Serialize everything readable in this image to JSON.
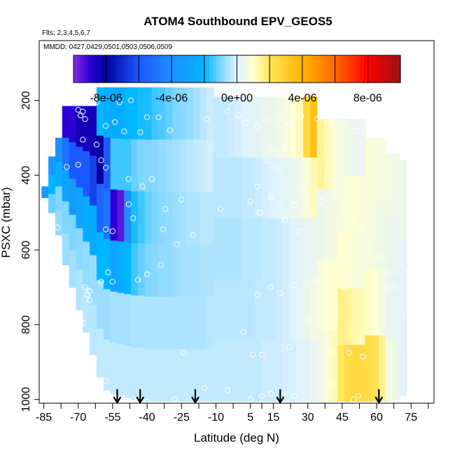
{
  "chart_data": {
    "type": "heatmap",
    "title": "ATOM4 Southbound EPV_GEOS5",
    "flights_label": "Flts: 2,3,4,5,6,7",
    "mmdd_label": "MMDD: 0427,0429,0501,0503,0506,0509",
    "xlabel": "Latitude (deg N)",
    "ylabel": "PSXC (mbar)",
    "xlim": [
      -87,
      85
    ],
    "ylim": [
      1010,
      40
    ],
    "x_ticks": [
      -85,
      -70,
      -55,
      -40,
      -25,
      -10,
      5,
      15,
      30,
      45,
      60,
      75
    ],
    "x_tick_labels": [
      "-85",
      "-70",
      "-55",
      "-40",
      "-25",
      "-10",
      "5",
      "15",
      "30",
      "45",
      "60",
      "75"
    ],
    "x_minor_ticks": [
      -77.5,
      -62.5,
      -47.5,
      -32.5,
      -17.5,
      -2.5,
      10,
      22.5,
      37.5,
      52.5,
      67.5,
      82.5
    ],
    "y_ticks": [
      200,
      400,
      600,
      800,
      1000
    ],
    "y_tick_labels": [
      "200",
      "400",
      "600",
      "800",
      "1000"
    ],
    "colorbar": {
      "min": -1e-05,
      "max": 1e-05,
      "ticks": [
        -8e-06,
        -4e-06,
        0,
        4e-06,
        8e-06
      ],
      "tick_labels": [
        "-8e-06",
        "-4e-06",
        "0e+00",
        "4e-06",
        "8e-06"
      ],
      "stops": [
        {
          "v": -1e-05,
          "c": "#8a2be2"
        },
        {
          "v": -9e-06,
          "c": "#2a00d5"
        },
        {
          "v": -8e-06,
          "c": "#00009e"
        },
        {
          "v": -6e-06,
          "c": "#1c58ff"
        },
        {
          "v": -4e-06,
          "c": "#1e8fff"
        },
        {
          "v": -2e-06,
          "c": "#00b6ff"
        },
        {
          "v": -1e-06,
          "c": "#7fd6ff"
        },
        {
          "v": 0,
          "c": "#dff2ff"
        },
        {
          "v": 1e-06,
          "c": "#ffffd0"
        },
        {
          "v": 2e-06,
          "c": "#ffe65a"
        },
        {
          "v": 4e-06,
          "c": "#ffb400"
        },
        {
          "v": 6e-06,
          "c": "#ff6a00"
        },
        {
          "v": 8e-06,
          "c": "#ff0000"
        },
        {
          "v": 1e-05,
          "c": "#9a1414"
        }
      ]
    },
    "columns": [
      {
        "lat": -84.5,
        "p_top": 430,
        "p_bot": 460,
        "v": [
          -3.5e-06
        ]
      },
      {
        "lat": -81.5,
        "p_top": 350,
        "p_bot": 500,
        "v": [
          -3.5e-06,
          -2e-06,
          -1.2e-06
        ]
      },
      {
        "lat": -78.5,
        "p_top": 300,
        "p_bot": 560,
        "v": [
          -4e-06,
          -2.5e-06,
          -1e-06,
          -8e-07
        ]
      },
      {
        "lat": -75.5,
        "p_top": 215,
        "p_bot": 640,
        "v": [
          -9e-06,
          -5e-06,
          -3e-06,
          -1e-06,
          -7e-07
        ]
      },
      {
        "lat": -72.5,
        "p_top": 215,
        "p_bot": 700,
        "v": [
          -9e-06,
          -6e-06,
          -3.5e-06,
          -1e-06,
          -6e-07
        ]
      },
      {
        "lat": -69.5,
        "p_top": 215,
        "p_bot": 760,
        "v": [
          -8.5e-06,
          -6e-06,
          -3e-06,
          -9e-07,
          -5e-07
        ]
      },
      {
        "lat": -66.5,
        "p_top": 215,
        "p_bot": 820,
        "v": [
          -8.5e-06,
          -6e-06,
          -2.5e-06,
          -8e-07,
          -4e-07
        ]
      },
      {
        "lat": -63.5,
        "p_top": 215,
        "p_bot": 880,
        "v": [
          -8.5e-06,
          -6.5e-06,
          -2.5e-06,
          -7e-07,
          -4e-07
        ]
      },
      {
        "lat": -60.5,
        "p_top": 165,
        "p_bot": 940,
        "v": [
          -2e-06,
          -8e-06,
          -5.5e-06,
          -2e-06,
          -7e-07,
          -3e-07
        ]
      },
      {
        "lat": -57.5,
        "p_top": 165,
        "p_bot": 975,
        "v": [
          -2.5e-06,
          -6e-06,
          -5e-06,
          -2e-06,
          -7e-07,
          -3e-07
        ]
      },
      {
        "lat": -54.5,
        "p_top": 165,
        "p_bot": 985,
        "v": [
          -2.5e-06,
          -1.5e-06,
          -9e-06,
          -3e-06,
          -6e-07,
          -3e-07
        ]
      },
      {
        "lat": -51.5,
        "p_top": 165,
        "p_bot": 990,
        "v": [
          -2.5e-06,
          -1.5e-06,
          -9.5e-06,
          -2.5e-06,
          -6e-07,
          -3e-07
        ]
      },
      {
        "lat": -48.5,
        "p_top": 165,
        "p_bot": 995,
        "v": [
          -2e-06,
          -1.5e-06,
          -4e-06,
          -2e-06,
          -6e-07,
          -3e-07
        ]
      },
      {
        "lat": -45.5,
        "p_top": 165,
        "p_bot": 1000,
        "v": [
          -2e-06,
          -1.2e-06,
          -1.8e-06,
          -1.5e-06,
          -5e-07,
          -3e-07
        ]
      },
      {
        "lat": -42.5,
        "p_top": 165,
        "p_bot": 1000,
        "v": [
          -1.8e-06,
          -1e-06,
          -1.5e-06,
          -1.2e-06,
          -5e-07,
          -3e-07
        ]
      },
      {
        "lat": -39.5,
        "p_top": 165,
        "p_bot": 1005,
        "v": [
          -1.8e-06,
          -1e-06,
          -1.2e-06,
          -1e-06,
          -5e-07,
          -3e-07
        ]
      },
      {
        "lat": -36.5,
        "p_top": 165,
        "p_bot": 1005,
        "v": [
          -1.5e-06,
          -9e-07,
          -1e-06,
          -9e-07,
          -5e-07,
          -3e-07
        ]
      },
      {
        "lat": -33.5,
        "p_top": 165,
        "p_bot": 1005,
        "v": [
          -1.4e-06,
          -8e-07,
          -9e-07,
          -8e-07,
          -5e-07,
          -3e-07
        ]
      },
      {
        "lat": -30.5,
        "p_top": 165,
        "p_bot": 1005,
        "v": [
          -1.2e-06,
          -7e-07,
          -8e-07,
          -8e-07,
          -5e-07,
          -3e-07
        ]
      },
      {
        "lat": -27.5,
        "p_top": 165,
        "p_bot": 1005,
        "v": [
          -1e-06,
          -6e-07,
          -7e-07,
          -7e-07,
          -5e-07,
          -3e-07
        ]
      },
      {
        "lat": -24.5,
        "p_top": 165,
        "p_bot": 1005,
        "v": [
          -9e-07,
          -5e-07,
          -6e-07,
          -6e-07,
          -5e-07,
          -3e-07
        ]
      },
      {
        "lat": -21.5,
        "p_top": 165,
        "p_bot": 1005,
        "v": [
          -8e-07,
          -4e-07,
          -5e-07,
          -6e-07,
          -5e-07,
          -3e-07
        ]
      },
      {
        "lat": -18.5,
        "p_top": 165,
        "p_bot": 1005,
        "v": [
          -6e-07,
          -3e-07,
          -5e-07,
          -6e-07,
          -5e-07,
          -3e-07
        ]
      },
      {
        "lat": -15.5,
        "p_top": 165,
        "p_bot": 1005,
        "v": [
          -4e-07,
          -2e-07,
          -4e-07,
          -5e-07,
          -5e-07,
          -3e-07
        ]
      },
      {
        "lat": -12.5,
        "p_top": 165,
        "p_bot": 1005,
        "v": [
          -2e-07,
          -1e-07,
          -4e-07,
          -5e-07,
          -4e-07,
          -3e-07
        ]
      },
      {
        "lat": -9.5,
        "p_top": 190,
        "p_bot": 1005,
        "v": [
          -3e-07,
          -4e-07,
          -5e-07,
          -4e-07,
          -3e-07
        ]
      },
      {
        "lat": -6.5,
        "p_top": 190,
        "p_bot": 1005,
        "v": [
          -3e-07,
          -4e-07,
          -5e-07,
          -4e-07,
          -3e-07
        ]
      },
      {
        "lat": -3.5,
        "p_top": 190,
        "p_bot": 1005,
        "v": [
          -2e-07,
          -4e-07,
          -5e-07,
          -4e-07,
          -3e-07
        ]
      },
      {
        "lat": -0.5,
        "p_top": 190,
        "p_bot": 1005,
        "v": [
          -1e-07,
          -4e-07,
          -5e-07,
          -4e-07,
          -3e-07
        ]
      },
      {
        "lat": 2.5,
        "p_top": 190,
        "p_bot": 1005,
        "v": [
          0,
          -3e-07,
          -4e-07,
          -4e-07,
          -3e-07
        ]
      },
      {
        "lat": 5.5,
        "p_top": 190,
        "p_bot": 1005,
        "v": [
          1e-07,
          -3e-07,
          -4e-07,
          -4e-07,
          -3e-07
        ]
      },
      {
        "lat": 8.5,
        "p_top": 190,
        "p_bot": 1005,
        "v": [
          2e-07,
          -2e-07,
          -4e-07,
          -3e-07,
          -3e-07
        ]
      },
      {
        "lat": 11.5,
        "p_top": 190,
        "p_bot": 1005,
        "v": [
          3e-07,
          -1e-07,
          -3e-07,
          -3e-07,
          -2e-07
        ]
      },
      {
        "lat": 14.5,
        "p_top": 190,
        "p_bot": 1005,
        "v": [
          4e-07,
          0,
          -3e-07,
          -3e-07,
          -2e-07
        ]
      },
      {
        "lat": 17.5,
        "p_top": 190,
        "p_bot": 1005,
        "v": [
          5e-07,
          1e-07,
          -2e-07,
          -2e-07,
          -2e-07
        ]
      },
      {
        "lat": 20.5,
        "p_top": 190,
        "p_bot": 1005,
        "v": [
          7e-07,
          2e-07,
          -1e-07,
          -1e-07,
          -1e-07
        ]
      },
      {
        "lat": 23.5,
        "p_top": 190,
        "p_bot": 1005,
        "v": [
          9e-07,
          3e-07,
          0,
          0,
          -1e-07
        ]
      },
      {
        "lat": 26.5,
        "p_top": 190,
        "p_bot": 1005,
        "v": [
          1.2e-06,
          5e-07,
          1e-07,
          2e-07,
          0
        ]
      },
      {
        "lat": 29.5,
        "p_top": 190,
        "p_bot": 1005,
        "v": [
          2.5e-06,
          8e-07,
          2e-07,
          4e-07,
          1e-07
        ]
      },
      {
        "lat": 32.5,
        "p_top": 190,
        "p_bot": 1005,
        "v": [
          3.5e-06,
          1.2e-06,
          3e-07,
          6e-07,
          3e-07
        ]
      },
      {
        "lat": 35.5,
        "p_top": 250,
        "p_bot": 1005,
        "v": [
          1.5e-06,
          4e-07,
          8e-07,
          5e-07
        ]
      },
      {
        "lat": 38.5,
        "p_top": 250,
        "p_bot": 1005,
        "v": [
          1.2e-06,
          5e-07,
          9e-07,
          8e-07
        ]
      },
      {
        "lat": 41.5,
        "p_top": 250,
        "p_bot": 1005,
        "v": [
          8e-07,
          6e-07,
          1e-06,
          1.2e-06
        ]
      },
      {
        "lat": 44.5,
        "p_top": 250,
        "p_bot": 1005,
        "v": [
          6e-07,
          7e-07,
          1e-06,
          1.6e-06,
          2e-06
        ]
      },
      {
        "lat": 47.5,
        "p_top": 250,
        "p_bot": 1005,
        "v": [
          5e-07,
          8e-07,
          9e-07,
          1.5e-06,
          2.4e-06
        ]
      },
      {
        "lat": 50.5,
        "p_top": 250,
        "p_bot": 1005,
        "v": [
          4e-07,
          9e-07,
          8e-07,
          1.3e-06,
          2.6e-06
        ]
      },
      {
        "lat": 53.5,
        "p_top": 250,
        "p_bot": 1005,
        "v": [
          3e-07,
          8e-07,
          7e-07,
          1.2e-06,
          2.5e-06
        ]
      },
      {
        "lat": 56.5,
        "p_top": 300,
        "p_bot": 1005,
        "v": [
          8e-07,
          7e-07,
          1.1e-06,
          2.4e-06
        ]
      },
      {
        "lat": 59.5,
        "p_top": 300,
        "p_bot": 1005,
        "v": [
          7e-07,
          6e-07,
          9e-07,
          2.2e-06
        ]
      },
      {
        "lat": 62.5,
        "p_top": 300,
        "p_bot": 1005,
        "v": [
          7e-07,
          5e-07,
          6e-07,
          1.5e-06
        ]
      },
      {
        "lat": 65.5,
        "p_top": 340,
        "p_bot": 1005,
        "v": [
          6e-07,
          4e-07,
          3e-07,
          7e-07
        ]
      },
      {
        "lat": 68.5,
        "p_top": 340,
        "p_bot": 1000,
        "v": [
          5e-07,
          3e-07,
          2e-07,
          4e-07
        ]
      },
      {
        "lat": 71.5,
        "p_top": 360,
        "p_bot": 990,
        "v": [
          4e-07,
          2e-07,
          1e-07
        ]
      }
    ],
    "observations": [
      [
        -80,
        235
      ],
      [
        -70,
        225
      ],
      [
        -69,
        240
      ],
      [
        -68,
        230
      ],
      [
        -67,
        250
      ],
      [
        -62,
        205
      ],
      [
        -52,
        205
      ],
      [
        -47,
        200
      ],
      [
        -58,
        268
      ],
      [
        -54,
        258
      ],
      [
        -50,
        283
      ],
      [
        -43,
        285
      ],
      [
        -40,
        245
      ],
      [
        -35,
        245
      ],
      [
        -30,
        280
      ],
      [
        -68,
        305
      ],
      [
        -62,
        318
      ],
      [
        -60,
        360
      ],
      [
        -75,
        378
      ],
      [
        -70,
        372
      ],
      [
        -58,
        380
      ],
      [
        -48,
        410
      ],
      [
        -42,
        430
      ],
      [
        -38,
        410
      ],
      [
        -32,
        490
      ],
      [
        -25,
        465
      ],
      [
        -48,
        478
      ],
      [
        -46,
        515
      ],
      [
        -58,
        545
      ],
      [
        -55,
        550
      ],
      [
        -79,
        540
      ],
      [
        -33,
        545
      ],
      [
        -27,
        585
      ],
      [
        -20,
        560
      ],
      [
        -14,
        250
      ],
      [
        -5,
        230
      ],
      [
        0,
        240
      ],
      [
        3,
        260
      ],
      [
        8,
        270
      ],
      [
        12,
        255
      ],
      [
        18,
        248
      ],
      [
        22,
        265
      ],
      [
        27,
        240
      ],
      [
        34,
        250
      ],
      [
        40,
        260
      ],
      [
        45,
        270
      ],
      [
        50,
        282
      ],
      [
        53,
        282
      ],
      [
        14,
        330
      ],
      [
        17,
        340
      ],
      [
        20,
        330
      ],
      [
        12,
        360
      ],
      [
        16,
        380
      ],
      [
        18,
        390
      ],
      [
        -8,
        490
      ],
      [
        8,
        430
      ],
      [
        5,
        470
      ],
      [
        9,
        500
      ],
      [
        14,
        460
      ],
      [
        18,
        480
      ],
      [
        20,
        520
      ],
      [
        28,
        430
      ],
      [
        24,
        480
      ],
      [
        26,
        550
      ],
      [
        32,
        500
      ],
      [
        36,
        470
      ],
      [
        42,
        450
      ],
      [
        46,
        490
      ],
      [
        50,
        520
      ],
      [
        53,
        550
      ],
      [
        57,
        600
      ],
      [
        62,
        620
      ],
      [
        64,
        660
      ],
      [
        68,
        700
      ],
      [
        70,
        640
      ],
      [
        -60,
        685
      ],
      [
        -55,
        685
      ],
      [
        -44,
        680
      ],
      [
        -40,
        665
      ],
      [
        -67,
        700
      ],
      [
        -65,
        710
      ],
      [
        -65,
        735
      ],
      [
        -66,
        720
      ],
      [
        -68,
        795
      ],
      [
        -34,
        640
      ],
      [
        -57,
        660
      ],
      [
        -24,
        875
      ],
      [
        -58,
        950
      ],
      [
        -60,
        990
      ],
      [
        -66,
        990
      ],
      [
        -46,
        1000
      ],
      [
        -40,
        1005
      ],
      [
        -28,
        1000
      ],
      [
        -15,
        970
      ],
      [
        -5,
        975
      ],
      [
        5,
        1000
      ],
      [
        10,
        990
      ],
      [
        14,
        985
      ],
      [
        24,
        990
      ],
      [
        14,
        700
      ],
      [
        8,
        720
      ],
      [
        18,
        715
      ],
      [
        24,
        695
      ],
      [
        30,
        690
      ],
      [
        34,
        685
      ],
      [
        46,
        700
      ],
      [
        58,
        705
      ],
      [
        65,
        700
      ],
      [
        2,
        820
      ],
      [
        6,
        880
      ],
      [
        10,
        880
      ],
      [
        22,
        860
      ],
      [
        30,
        790
      ],
      [
        40,
        870
      ],
      [
        48,
        875
      ],
      [
        54,
        885
      ],
      [
        40,
        960
      ],
      [
        50,
        1000
      ],
      [
        52,
        990
      ]
    ],
    "arrows_lat": [
      -53,
      -43,
      -19,
      18,
      61
    ]
  }
}
